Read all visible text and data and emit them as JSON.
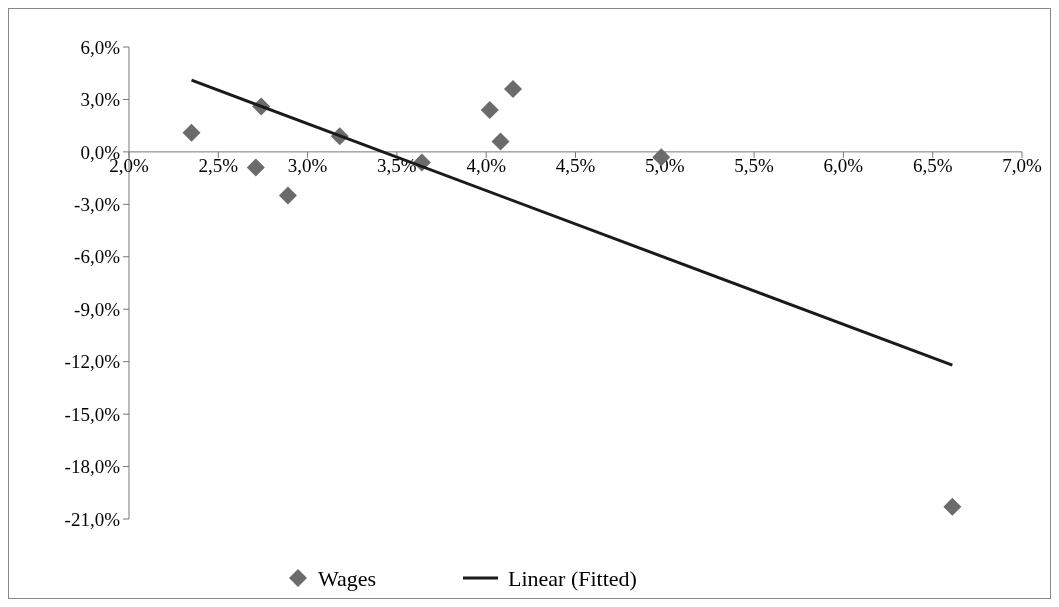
{
  "chart_data": {
    "type": "scatter",
    "xlim": [
      2,
      7
    ],
    "ylim": [
      -21,
      6
    ],
    "xticks": [
      {
        "value": 2,
        "label": "2,0%"
      },
      {
        "value": 2.5,
        "label": "2,5%"
      },
      {
        "value": 3,
        "label": "3,0%"
      },
      {
        "value": 3.5,
        "label": "3,5%"
      },
      {
        "value": 4,
        "label": "4,0%"
      },
      {
        "value": 4.5,
        "label": "4,5%"
      },
      {
        "value": 5,
        "label": "5,0%"
      },
      {
        "value": 5.5,
        "label": "5,5%"
      },
      {
        "value": 6,
        "label": "6,0%"
      },
      {
        "value": 6.5,
        "label": "6,5%"
      },
      {
        "value": 7,
        "label": "7,0%"
      }
    ],
    "yticks": [
      {
        "value": 6,
        "label": "6,0%"
      },
      {
        "value": 3,
        "label": "3,0%"
      },
      {
        "value": 0,
        "label": "0,0%"
      },
      {
        "value": -3,
        "label": "-3,0%"
      },
      {
        "value": -6,
        "label": "-6,0%"
      },
      {
        "value": -9,
        "label": "-9,0%"
      },
      {
        "value": -12,
        "label": "-12,0%"
      },
      {
        "value": -15,
        "label": "-15,0%"
      },
      {
        "value": -18,
        "label": "-18,0%"
      },
      {
        "value": -21,
        "label": "-21,0%"
      }
    ],
    "grid": false,
    "legend": "bottom",
    "marker": "diamond",
    "series": [
      {
        "name": "Wages",
        "color": "#6b6b6b",
        "x": [
          2.35,
          2.71,
          2.74,
          2.89,
          3.18,
          3.64,
          4.02,
          4.08,
          4.15,
          4.98,
          6.61
        ],
        "values": [
          1.1,
          -0.9,
          2.6,
          -2.5,
          0.9,
          -0.6,
          2.4,
          0.6,
          3.6,
          -0.3,
          -20.3
        ]
      },
      {
        "name": "Linear (Fitted)",
        "type": "line",
        "color": "#1a1a1a",
        "line_style": "solid",
        "marker": "none",
        "x": [
          2.35,
          6.61
        ],
        "values": [
          4.1,
          -12.2
        ]
      }
    ]
  }
}
